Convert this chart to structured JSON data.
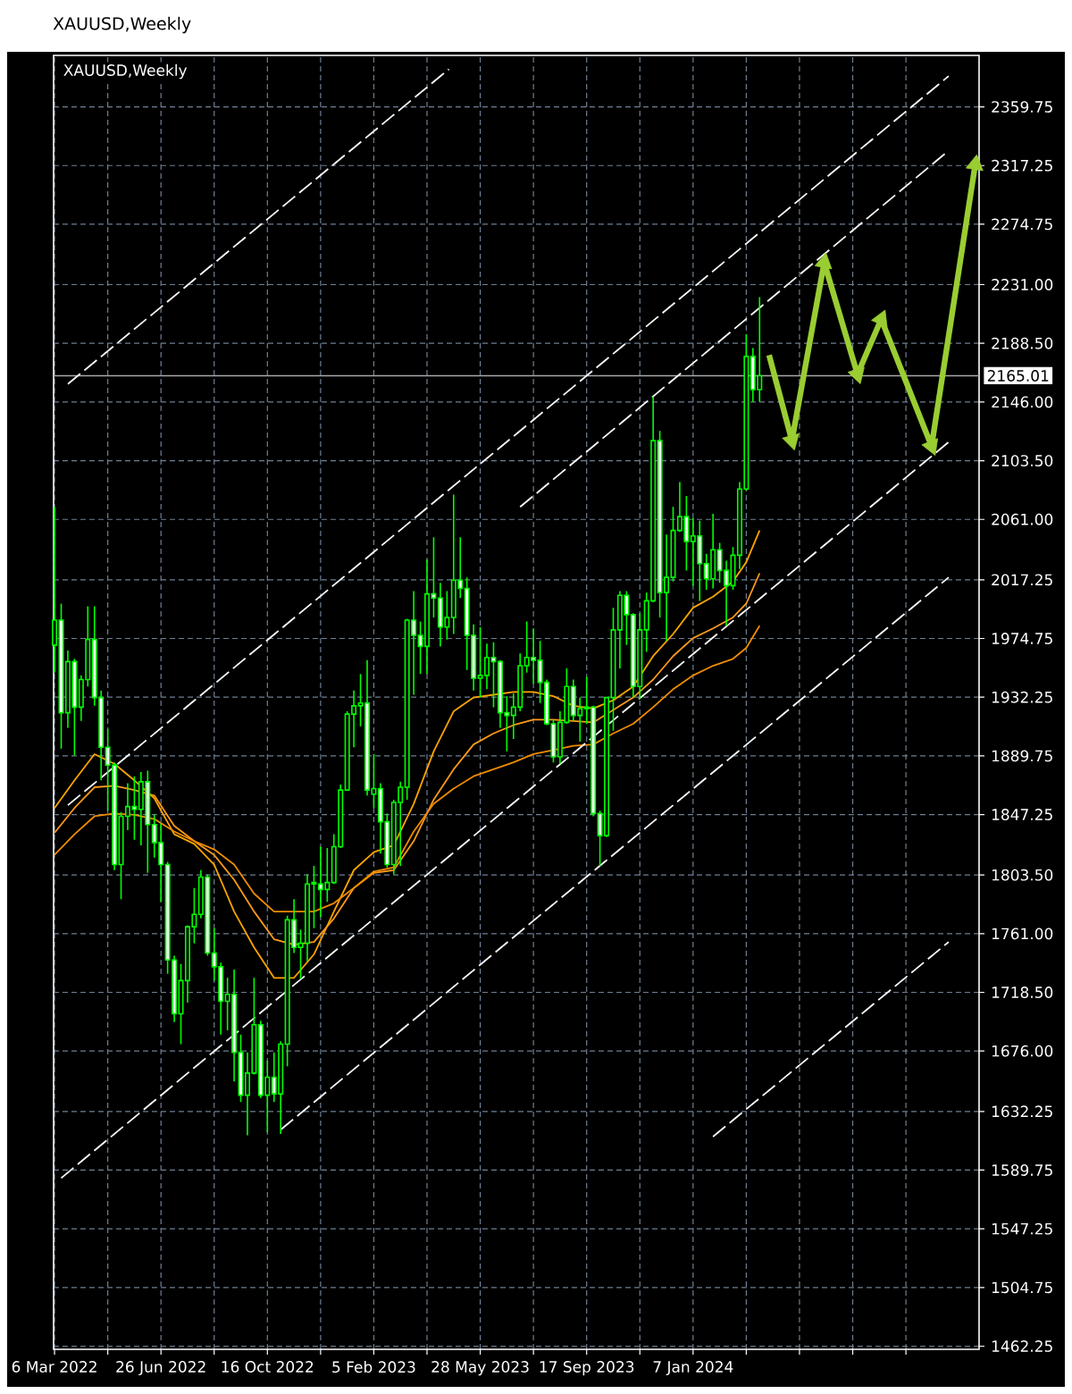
{
  "chart_data": {
    "type": "candlestick",
    "title": "XAUUSD,Weekly",
    "subtitle": "XAUUSD,Weekly",
    "color": "#00ff00",
    "x": [
      "2022-03-06",
      "2022-03-13",
      "2022-03-20",
      "2022-03-27",
      "2022-04-03",
      "2022-04-10",
      "2022-04-17",
      "2022-04-24",
      "2022-05-01",
      "2022-05-08",
      "2022-05-15",
      "2022-05-22",
      "2022-05-29",
      "2022-06-05",
      "2022-06-12",
      "2022-06-19",
      "2022-06-26",
      "2022-07-03",
      "2022-07-10",
      "2022-07-17",
      "2022-07-24",
      "2022-07-31",
      "2022-08-07",
      "2022-08-14",
      "2022-08-21",
      "2022-08-28",
      "2022-09-04",
      "2022-09-11",
      "2022-09-18",
      "2022-09-25",
      "2022-10-02",
      "2022-10-09",
      "2022-10-16",
      "2022-10-23",
      "2022-10-30",
      "2022-11-06",
      "2022-11-13",
      "2022-11-20",
      "2022-11-27",
      "2022-12-04",
      "2022-12-11",
      "2022-12-18",
      "2022-12-25",
      "2023-01-01",
      "2023-01-08",
      "2023-01-15",
      "2023-01-22",
      "2023-01-29",
      "2023-02-05",
      "2023-02-12",
      "2023-02-19",
      "2023-02-26",
      "2023-03-05",
      "2023-03-12",
      "2023-03-19",
      "2023-03-26",
      "2023-04-02",
      "2023-04-09",
      "2023-04-16",
      "2023-04-23",
      "2023-04-30",
      "2023-05-07",
      "2023-05-14",
      "2023-05-21",
      "2023-05-28",
      "2023-06-04",
      "2023-06-11",
      "2023-06-18",
      "2023-06-25",
      "2023-07-02",
      "2023-07-09",
      "2023-07-16",
      "2023-07-23",
      "2023-07-30",
      "2023-08-06",
      "2023-08-13",
      "2023-08-20",
      "2023-08-27",
      "2023-09-03",
      "2023-09-10",
      "2023-09-17",
      "2023-09-24",
      "2023-10-01",
      "2023-10-08",
      "2023-10-15",
      "2023-10-22",
      "2023-10-29",
      "2023-11-05",
      "2023-11-12",
      "2023-11-19",
      "2023-11-26",
      "2023-12-03",
      "2023-12-10",
      "2023-12-17",
      "2023-12-24",
      "2023-12-31",
      "2024-01-07",
      "2024-01-14",
      "2024-01-21",
      "2024-01-28",
      "2024-02-04",
      "2024-02-11",
      "2024-02-18",
      "2024-02-25",
      "2024-03-03",
      "2024-03-10",
      "2024-03-17"
    ],
    "ohlc": [
      [
        1970,
        2070,
        1950,
        1988
      ],
      [
        1988,
        2000,
        1895,
        1921
      ],
      [
        1921,
        1966,
        1910,
        1958
      ],
      [
        1958,
        1960,
        1890,
        1925
      ],
      [
        1925,
        1948,
        1915,
        1945
      ],
      [
        1945,
        1998,
        1940,
        1974
      ],
      [
        1974,
        1998,
        1926,
        1932
      ],
      [
        1932,
        1937,
        1872,
        1896
      ],
      [
        1896,
        1909,
        1850,
        1883
      ],
      [
        1883,
        1885,
        1807,
        1811
      ],
      [
        1811,
        1849,
        1786,
        1846
      ],
      [
        1846,
        1870,
        1836,
        1853
      ],
      [
        1853,
        1875,
        1829,
        1851
      ],
      [
        1851,
        1878,
        1825,
        1871
      ],
      [
        1871,
        1879,
        1805,
        1840
      ],
      [
        1840,
        1847,
        1816,
        1827
      ],
      [
        1827,
        1841,
        1784,
        1811
      ],
      [
        1811,
        1813,
        1732,
        1742
      ],
      [
        1742,
        1745,
        1697,
        1703
      ],
      [
        1703,
        1739,
        1681,
        1727
      ],
      [
        1727,
        1767,
        1711,
        1766
      ],
      [
        1766,
        1794,
        1754,
        1775
      ],
      [
        1775,
        1807,
        1772,
        1802
      ],
      [
        1802,
        1804,
        1745,
        1747
      ],
      [
        1747,
        1765,
        1727,
        1737
      ],
      [
        1737,
        1740,
        1688,
        1712
      ],
      [
        1712,
        1729,
        1691,
        1717
      ],
      [
        1717,
        1735,
        1654,
        1675
      ],
      [
        1675,
        1688,
        1639,
        1644
      ],
      [
        1644,
        1675,
        1615,
        1660
      ],
      [
        1660,
        1729,
        1659,
        1695
      ],
      [
        1695,
        1698,
        1642,
        1644
      ],
      [
        1644,
        1669,
        1617,
        1657
      ],
      [
        1657,
        1675,
        1639,
        1645
      ],
      [
        1645,
        1683,
        1616,
        1681
      ],
      [
        1681,
        1774,
        1665,
        1771
      ],
      [
        1771,
        1786,
        1747,
        1751
      ],
      [
        1751,
        1764,
        1728,
        1754
      ],
      [
        1754,
        1804,
        1741,
        1797
      ],
      [
        1797,
        1810,
        1765,
        1798
      ],
      [
        1797,
        1824,
        1773,
        1793
      ],
      [
        1793,
        1823,
        1784,
        1798
      ],
      [
        1798,
        1833,
        1797,
        1824
      ],
      [
        1824,
        1869,
        1823,
        1865
      ],
      [
        1865,
        1922,
        1865,
        1920
      ],
      [
        1920,
        1937,
        1896,
        1926
      ],
      [
        1926,
        1949,
        1911,
        1928
      ],
      [
        1928,
        1959,
        1861,
        1865
      ],
      [
        1862,
        1891,
        1852,
        1866
      ],
      [
        1866,
        1870,
        1819,
        1842
      ],
      [
        1842,
        1848,
        1809,
        1811
      ],
      [
        1811,
        1858,
        1804,
        1856
      ],
      [
        1856,
        1871,
        1810,
        1867
      ],
      [
        1867,
        1989,
        1858,
        1988
      ],
      [
        1988,
        2009,
        1934,
        1977
      ],
      [
        1977,
        1987,
        1949,
        1969
      ],
      [
        1969,
        2032,
        1949,
        2007
      ],
      [
        2007,
        2048,
        1990,
        2004
      ],
      [
        2004,
        2015,
        1969,
        1983
      ],
      [
        1983,
        2009,
        1974,
        1990
      ],
      [
        1990,
        2079,
        1978,
        2017
      ],
      [
        2017,
        2048,
        2004,
        2011
      ],
      [
        2011,
        2019,
        1952,
        1977
      ],
      [
        1977,
        1985,
        1937,
        1946
      ],
      [
        1946,
        1983,
        1932,
        1948
      ],
      [
        1948,
        1971,
        1938,
        1961
      ],
      [
        1961,
        1972,
        1925,
        1958
      ],
      [
        1958,
        1959,
        1910,
        1921
      ],
      [
        1921,
        1933,
        1893,
        1919
      ],
      [
        1919,
        1935,
        1902,
        1925
      ],
      [
        1925,
        1964,
        1922,
        1955
      ],
      [
        1955,
        1987,
        1950,
        1961
      ],
      [
        1961,
        1982,
        1942,
        1959
      ],
      [
        1959,
        1973,
        1928,
        1943
      ],
      [
        1943,
        1945,
        1912,
        1913
      ],
      [
        1913,
        1916,
        1885,
        1889
      ],
      [
        1889,
        1922,
        1884,
        1914
      ],
      [
        1914,
        1953,
        1913,
        1940
      ],
      [
        1940,
        1945,
        1915,
        1919
      ],
      [
        1919,
        1932,
        1900,
        1924
      ],
      [
        1924,
        1947,
        1913,
        1925
      ],
      [
        1925,
        1926,
        1846,
        1848
      ],
      [
        1848,
        1850,
        1810,
        1832
      ],
      [
        1832,
        1932,
        1831,
        1932
      ],
      [
        1932,
        1997,
        1908,
        1981
      ],
      [
        1981,
        2009,
        1953,
        2006
      ],
      [
        2006,
        2009,
        1970,
        1992
      ],
      [
        1992,
        1993,
        1932,
        1940
      ],
      [
        1940,
        1993,
        1931,
        1981
      ],
      [
        1981,
        2008,
        1965,
        2002
      ],
      [
        2002,
        2150,
        2001,
        2118
      ],
      [
        2118,
        2125,
        1990,
        2008
      ],
      [
        2008,
        2050,
        1973,
        2019
      ],
      [
        2019,
        2070,
        2016,
        2053
      ],
      [
        2053,
        2088,
        2052,
        2063
      ],
      [
        2063,
        2078,
        2024,
        2045
      ],
      [
        2045,
        2062,
        2013,
        2049
      ],
      [
        2049,
        2060,
        2002,
        2029
      ],
      [
        2029,
        2036,
        2010,
        2018
      ],
      [
        2018,
        2065,
        2011,
        2039
      ],
      [
        2039,
        2044,
        2015,
        2024
      ],
      [
        2024,
        2031,
        1984,
        2013
      ],
      [
        2013,
        2041,
        2010,
        2035
      ],
      [
        2035,
        2088,
        2025,
        2083
      ],
      [
        2083,
        2195,
        2082,
        2179
      ],
      [
        2179,
        2185,
        2146,
        2155
      ],
      [
        2155,
        2222,
        2146,
        2165
      ]
    ],
    "colors": [
      "#000000",
      "#ffffff",
      "#000000",
      "#ffffff",
      "#000000",
      "#000000",
      "#ffffff",
      "#ffffff",
      "#ffffff",
      "#ffffff",
      "#000000",
      "#000000",
      "#ffffff",
      "#000000",
      "#ffffff",
      "#ffffff",
      "#ffffff",
      "#ffffff",
      "#ffffff",
      "#000000",
      "#000000",
      "#000000",
      "#000000",
      "#ffffff",
      "#ffffff",
      "#ffffff",
      "#000000",
      "#ffffff",
      "#ffffff",
      "#000000",
      "#000000",
      "#ffffff",
      "#000000",
      "#ffffff",
      "#000000",
      "#000000",
      "#ffffff",
      "#000000",
      "#000000",
      "#000000",
      "#ffffff",
      "#000000",
      "#000000",
      "#000000",
      "#000000",
      "#000000",
      "#000000",
      "#ffffff",
      "#000000",
      "#ffffff",
      "#ffffff",
      "#000000",
      "#000000",
      "#000000",
      "#ffffff",
      "#ffffff",
      "#000000",
      "#ffffff",
      "#ffffff",
      "#000000",
      "#000000",
      "#ffffff",
      "#ffffff",
      "#ffffff",
      "#000000",
      "#000000",
      "#ffffff",
      "#ffffff",
      "#ffffff",
      "#000000",
      "#000000",
      "#000000",
      "#ffffff",
      "#ffffff",
      "#ffffff",
      "#ffffff",
      "#000000",
      "#000000",
      "#ffffff",
      "#000000",
      "#000000",
      "#ffffff",
      "#ffffff",
      "#000000",
      "#000000",
      "#000000",
      "#ffffff",
      "#ffffff",
      "#000000",
      "#000000",
      "#000000",
      "#ffffff",
      "#000000",
      "#000000",
      "#000000",
      "#ffffff",
      "#000000",
      "#ffffff",
      "#ffffff",
      "#000000",
      "#ffffff",
      "#ffffff",
      "#000000",
      "#000000",
      "#000000",
      "#ffffff",
      "#000000"
    ],
    "series": [
      {
        "type": "line",
        "color": "#ffa500",
        "x": [
          "2022-03-06",
          "2022-03-27",
          "2022-04-17",
          "2022-05-08",
          "2022-05-29",
          "2022-06-19",
          "2022-07-10",
          "2022-07-31",
          "2022-08-21",
          "2022-09-11",
          "2022-10-02",
          "2022-10-23",
          "2022-11-13",
          "2022-12-04",
          "2022-12-25",
          "2023-01-15",
          "2023-02-05",
          "2023-02-26",
          "2023-03-19",
          "2023-04-09",
          "2023-04-30",
          "2023-05-21",
          "2023-06-11",
          "2023-07-02",
          "2023-07-23",
          "2023-08-13",
          "2023-09-03",
          "2023-09-24",
          "2023-10-15",
          "2023-11-05",
          "2023-11-26",
          "2023-12-17",
          "2024-01-07",
          "2024-01-28",
          "2024-02-18",
          "2024-03-03",
          "2024-03-17"
        ],
        "values": [
          1852,
          1872,
          1891,
          1884,
          1872,
          1859,
          1833,
          1826,
          1811,
          1777,
          1751,
          1729,
          1729,
          1746,
          1777,
          1807,
          1820,
          1825,
          1855,
          1893,
          1922,
          1932,
          1934,
          1936,
          1936,
          1933,
          1926,
          1924,
          1930,
          1940,
          1962,
          1978,
          1997,
          2005,
          2016,
          2030,
          2053
        ]
      },
      {
        "type": "line",
        "color": "#ff9a1a",
        "x": [
          "2022-03-06",
          "2022-03-27",
          "2022-04-17",
          "2022-05-08",
          "2022-05-29",
          "2022-06-19",
          "2022-07-10",
          "2022-07-31",
          "2022-08-21",
          "2022-09-11",
          "2022-10-02",
          "2022-10-23",
          "2022-11-13",
          "2022-12-04",
          "2022-12-25",
          "2023-01-15",
          "2023-02-05",
          "2023-02-26",
          "2023-03-19",
          "2023-04-09",
          "2023-04-30",
          "2023-05-21",
          "2023-06-11",
          "2023-07-02",
          "2023-07-23",
          "2023-08-13",
          "2023-09-03",
          "2023-09-24",
          "2023-10-15",
          "2023-11-05",
          "2023-11-26",
          "2023-12-17",
          "2024-01-07",
          "2024-01-28",
          "2024-02-18",
          "2024-03-03",
          "2024-03-17"
        ],
        "values": [
          1834,
          1852,
          1867,
          1868,
          1865,
          1861,
          1839,
          1828,
          1818,
          1800,
          1777,
          1757,
          1753,
          1755,
          1772,
          1794,
          1805,
          1807,
          1828,
          1858,
          1880,
          1898,
          1906,
          1912,
          1916,
          1916,
          1915,
          1914,
          1923,
          1932,
          1945,
          1962,
          1975,
          1982,
          1990,
          2000,
          2022
        ]
      },
      {
        "type": "line",
        "color": "#f08c00",
        "x": [
          "2022-03-06",
          "2022-03-27",
          "2022-04-17",
          "2022-05-08",
          "2022-05-29",
          "2022-06-19",
          "2022-07-10",
          "2022-07-31",
          "2022-08-21",
          "2022-09-11",
          "2022-10-02",
          "2022-10-23",
          "2022-11-13",
          "2022-12-04",
          "2022-12-25",
          "2023-01-15",
          "2023-02-05",
          "2023-02-26",
          "2023-03-19",
          "2023-04-09",
          "2023-04-30",
          "2023-05-21",
          "2023-06-11",
          "2023-07-02",
          "2023-07-23",
          "2023-08-13",
          "2023-09-03",
          "2023-09-24",
          "2023-10-15",
          "2023-11-05",
          "2023-11-26",
          "2023-12-17",
          "2024-01-07",
          "2024-01-28",
          "2024-02-18",
          "2024-03-03",
          "2024-03-17"
        ],
        "values": [
          1818,
          1833,
          1846,
          1848,
          1847,
          1844,
          1835,
          1828,
          1822,
          1811,
          1790,
          1777,
          1777,
          1777,
          1783,
          1794,
          1806,
          1809,
          1835,
          1855,
          1866,
          1875,
          1880,
          1885,
          1891,
          1894,
          1897,
          1898,
          1906,
          1913,
          1925,
          1938,
          1948,
          1955,
          1960,
          1968,
          1984
        ]
      },
      {
        "type": "line",
        "color": "#ffffff",
        "line_style": "dashed",
        "x": [
          "2022-03-20",
          "2023-04-25"
        ],
        "values": [
          2159,
          2387
        ]
      },
      {
        "type": "line",
        "color": "#ffffff",
        "line_style": "dashed",
        "x": [
          "2022-03-20",
          "2024-10-02"
        ],
        "values": [
          1854,
          2382
        ]
      },
      {
        "type": "line",
        "color": "#ffffff",
        "line_style": "dashed",
        "x": [
          "2023-07-09",
          "2024-10-02"
        ],
        "values": [
          2070,
          2328
        ]
      },
      {
        "type": "line",
        "color": "#ffffff",
        "line_style": "dashed",
        "x": [
          "2022-03-13",
          "2024-10-02"
        ],
        "values": [
          1584,
          2117
        ]
      },
      {
        "type": "line",
        "color": "#ffffff",
        "line_style": "dashed",
        "x": [
          "2022-10-30",
          "2024-10-02"
        ],
        "values": [
          1619,
          2019
        ]
      },
      {
        "type": "line",
        "color": "#ffffff",
        "line_style": "dashed",
        "x": [
          "2024-01-28",
          "2024-10-02"
        ],
        "values": [
          1614,
          1755
        ]
      },
      {
        "type": "line",
        "color": "#9acd32",
        "marker": "triangle",
        "x": [
          "2024-03-27",
          "2024-04-20",
          "2024-05-24",
          "2024-06-28",
          "2024-07-23",
          "2024-09-14",
          "2024-10-30"
        ],
        "values": [
          2180,
          2118,
          2247,
          2166,
          2206,
          2114,
          2318
        ]
      }
    ],
    "xlim": [
      "2022-03-05",
      "2024-11-03"
    ],
    "xticks": [
      {
        "value": "2022-03-06",
        "label": "6 Mar 2022"
      },
      {
        "value": "2022-05-01",
        "label": null
      },
      {
        "value": "2022-06-26",
        "label": "26 Jun 2022"
      },
      {
        "value": "2022-08-21",
        "label": null
      },
      {
        "value": "2022-10-16",
        "label": "16 Oct 2022"
      },
      {
        "value": "2022-12-11",
        "label": null
      },
      {
        "value": "2023-02-05",
        "label": "5 Feb 2023"
      },
      {
        "value": "2023-04-02",
        "label": null
      },
      {
        "value": "2023-05-28",
        "label": "28 May 2023"
      },
      {
        "value": "2023-07-23",
        "label": null
      },
      {
        "value": "2023-09-17",
        "label": "17 Sep 2023"
      },
      {
        "value": "2023-11-12",
        "label": null
      },
      {
        "value": "2024-01-07",
        "label": "7 Jan 2024"
      },
      {
        "value": "2024-03-03",
        "label": null
      },
      {
        "value": "2024-04-28",
        "label": null
      },
      {
        "value": "2024-06-23",
        "label": null
      },
      {
        "value": "2024-08-18",
        "label": null
      }
    ],
    "ylim": [
      1460,
      2397
    ],
    "yticks": [
      2359.75,
      2317.25,
      2274.75,
      {
        "value": 2231,
        "label": "2231.00"
      },
      {
        "value": 2188.5,
        "label": "2188.50"
      },
      {
        "value": 2146,
        "label": "2146.00"
      },
      {
        "value": 2103.5,
        "label": "2103.50"
      },
      {
        "value": 2061,
        "label": "2061.00"
      },
      2017.25,
      1974.75,
      1932.25,
      1889.75,
      1847.25,
      {
        "value": 1803.5,
        "label": "1803.50"
      },
      {
        "value": 1761,
        "label": "1761.00"
      },
      {
        "value": 1718.5,
        "label": "1718.50"
      },
      {
        "value": 1676,
        "label": "1676.00"
      },
      1632.25,
      1589.75,
      1547.25,
      1504.75,
      1462.25
    ],
    "grid": true,
    "ref_lines": [
      {
        "axis": "y",
        "value": 2165.01,
        "label": "2165.01",
        "color": "#a9a9a9"
      }
    ]
  }
}
